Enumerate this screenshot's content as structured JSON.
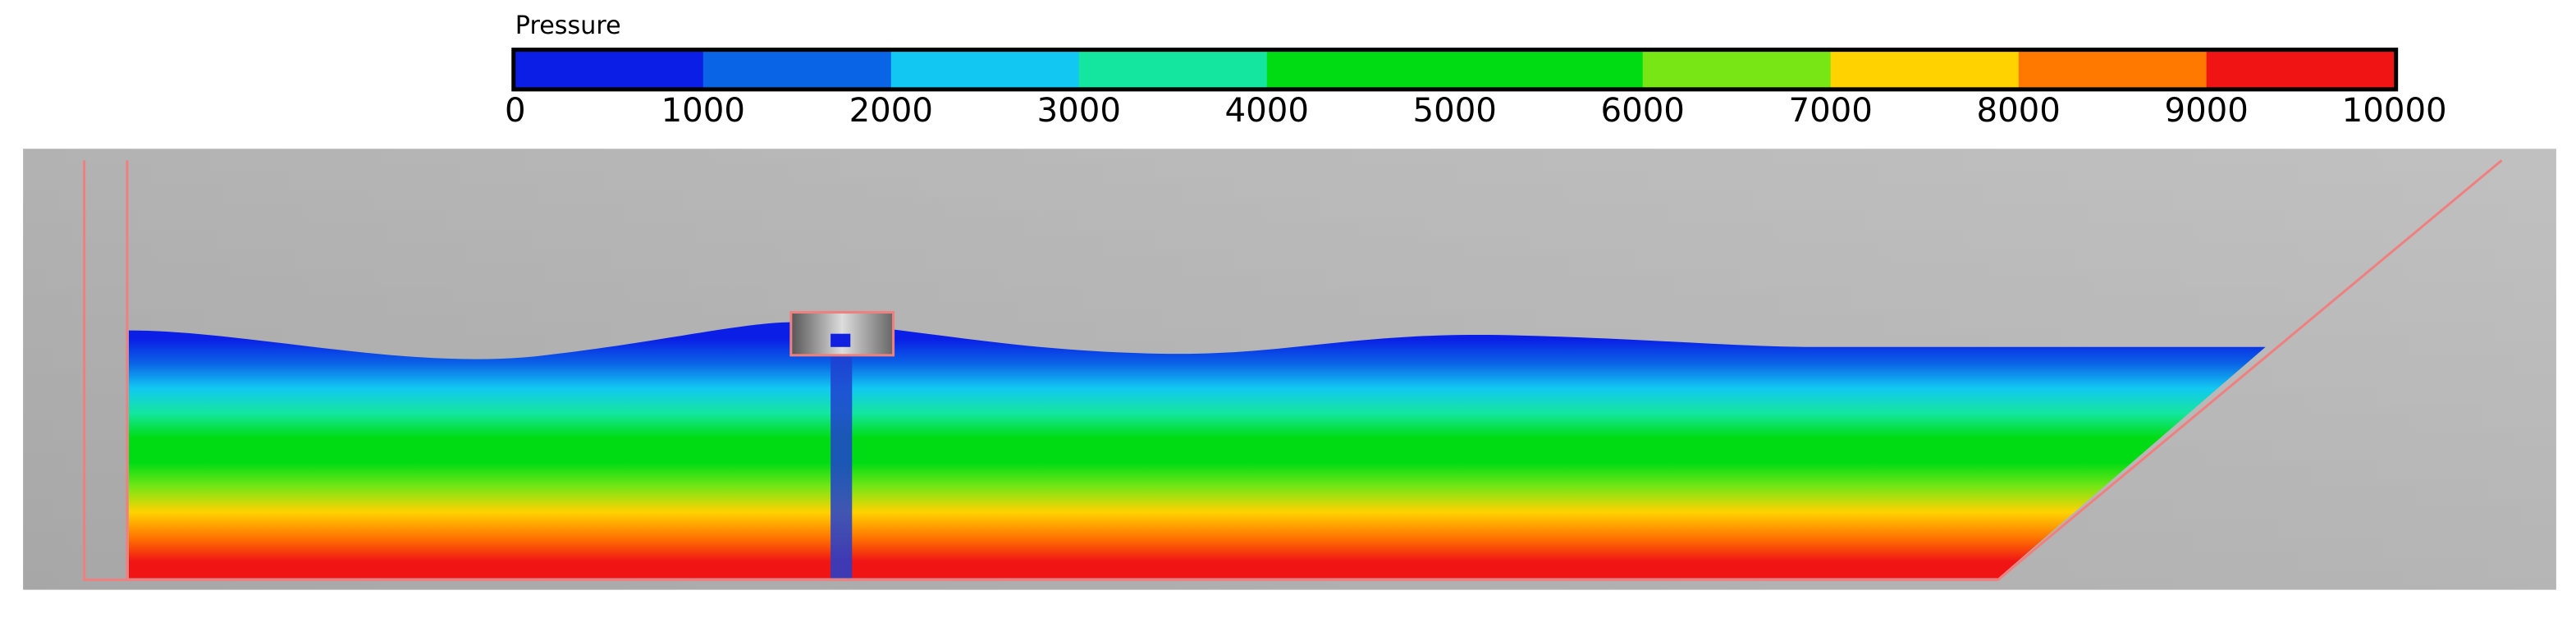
{
  "colorbar": {
    "title": "Pressure",
    "ticks": [
      0,
      1000,
      2000,
      3000,
      4000,
      5000,
      6000,
      7000,
      8000,
      9000,
      10000
    ],
    "colors": [
      "#0a1ee6",
      "#0a64e6",
      "#12c8f2",
      "#14e6a0",
      "#00dc14",
      "#00dc14",
      "#78e614",
      "#ffd200",
      "#ff7800",
      "#f01414"
    ]
  }
}
